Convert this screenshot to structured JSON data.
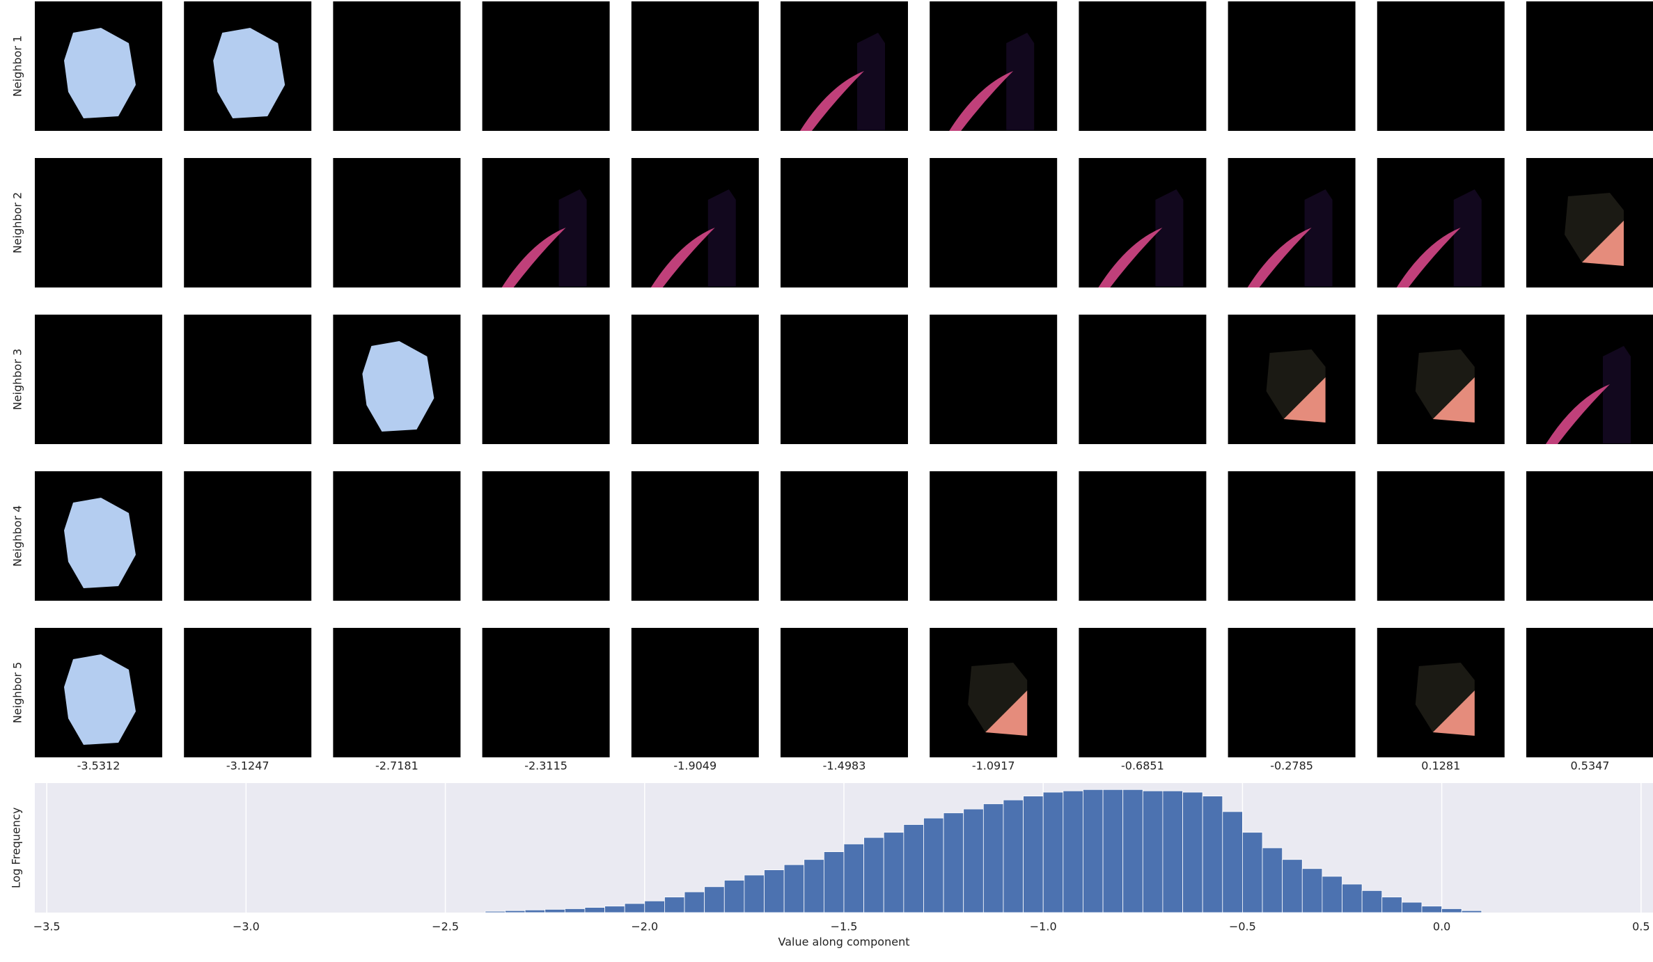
{
  "row_labels": [
    "Neighbor 1",
    "Neighbor 2",
    "Neighbor 3",
    "Neighbor 4",
    "Neighbor 5"
  ],
  "column_labels": [
    "-3.5312",
    "-3.1247",
    "-2.7181",
    "-2.3115",
    "-1.9049",
    "-1.4983",
    "-1.0917",
    "-0.6851",
    "-0.2785",
    "0.1281",
    "0.5347"
  ],
  "chart_data": {
    "type": "histogram",
    "xlabel": "Value along component",
    "ylabel": "Log Frequency",
    "bins": [
      -2.4,
      -2.35,
      -2.3,
      -2.25,
      -2.2,
      -2.15,
      -2.1,
      -2.05,
      -2.0,
      -1.95,
      -1.9,
      -1.85,
      -1.8,
      -1.75,
      -1.7,
      -1.65,
      -1.6,
      -1.55,
      -1.5,
      -1.45,
      -1.4,
      -1.35,
      -1.3,
      -1.25,
      -1.2,
      -1.15,
      -1.1,
      -1.05,
      -1.0,
      -0.95,
      -0.9,
      -0.85,
      -0.8,
      -0.75,
      -0.7,
      -0.65,
      -0.6,
      -0.55,
      -0.5,
      -0.45,
      -0.4,
      -0.35,
      -0.3,
      -0.25,
      -0.2,
      -0.15,
      -0.1,
      -0.05,
      0.0,
      0.05,
      0.1
    ],
    "values": [
      0.01,
      0.015,
      0.02,
      0.025,
      0.03,
      0.04,
      0.05,
      0.07,
      0.09,
      0.12,
      0.16,
      0.2,
      0.25,
      0.29,
      0.33,
      0.37,
      0.41,
      0.47,
      0.53,
      0.58,
      0.62,
      0.68,
      0.73,
      0.77,
      0.8,
      0.84,
      0.87,
      0.9,
      0.93,
      0.94,
      0.95,
      0.95,
      0.95,
      0.94,
      0.94,
      0.93,
      0.9,
      0.78,
      0.62,
      0.5,
      0.41,
      0.34,
      0.28,
      0.22,
      0.17,
      0.12,
      0.08,
      0.05,
      0.03,
      0.015
    ],
    "color": "#4c72b0",
    "xlim": [
      -3.53,
      0.53
    ],
    "ylim": [
      0,
      1
    ],
    "xticks": [
      {
        "value": -3.5,
        "label": "−3.5"
      },
      {
        "value": -3.0,
        "label": "−3.0"
      },
      {
        "value": -2.5,
        "label": "−2.5"
      },
      {
        "value": -2.0,
        "label": "−2.0"
      },
      {
        "value": -1.5,
        "label": "−1.5"
      },
      {
        "value": -1.0,
        "label": "−1.0"
      },
      {
        "value": -0.5,
        "label": "−0.5"
      },
      {
        "value": 0,
        "label": "0.0"
      },
      {
        "value": 0.5,
        "label": "0.5"
      }
    ],
    "grid": true
  }
}
